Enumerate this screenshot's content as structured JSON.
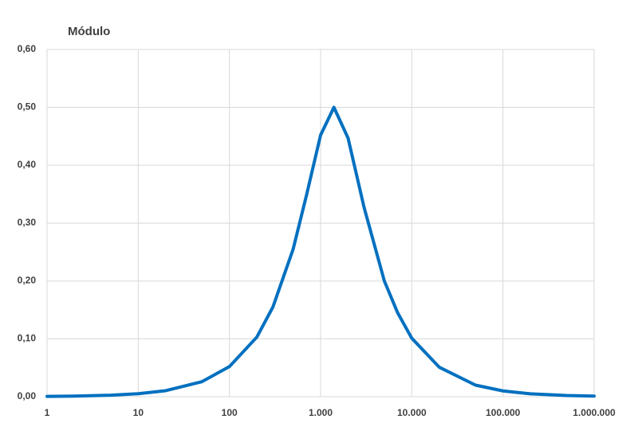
{
  "chart_data": {
    "type": "line",
    "title": "Módulo",
    "x": [
      1,
      2,
      5,
      10,
      20,
      50,
      100,
      200,
      300,
      500,
      700,
      1000,
      1400,
      2000,
      3000,
      5000,
      7000,
      10000,
      20000,
      50000,
      100000,
      200000,
      500000,
      1000000
    ],
    "series": [
      {
        "name": "Módulo",
        "color": "#0070c0",
        "values": [
          0.0005,
          0.001,
          0.0026,
          0.0052,
          0.0104,
          0.026,
          0.052,
          0.103,
          0.155,
          0.255,
          0.348,
          0.452,
          0.5,
          0.447,
          0.327,
          0.2,
          0.145,
          0.101,
          0.051,
          0.02,
          0.01,
          0.005,
          0.002,
          0.001
        ]
      }
    ],
    "xscale": "log",
    "xlim": [
      1,
      1000000
    ],
    "xticks": [
      1,
      10,
      100,
      {
        "value": 1000,
        "label": "1.000"
      },
      {
        "value": 10000,
        "label": "10.000"
      },
      {
        "value": 100000,
        "label": "100.000"
      },
      {
        "value": 1000000,
        "label": "1.000.000"
      }
    ],
    "ylim": [
      0,
      0.6
    ],
    "yticks": [
      {
        "value": 0,
        "label": "0,00"
      },
      {
        "value": 0.1,
        "label": "0,10"
      },
      {
        "value": 0.2,
        "label": "0,20"
      },
      {
        "value": 0.3,
        "label": "0,30"
      },
      {
        "value": 0.4,
        "label": "0,40"
      },
      {
        "value": 0.5,
        "label": "0,50"
      },
      {
        "value": 0.6,
        "label": "0,60"
      }
    ],
    "grid": true
  }
}
